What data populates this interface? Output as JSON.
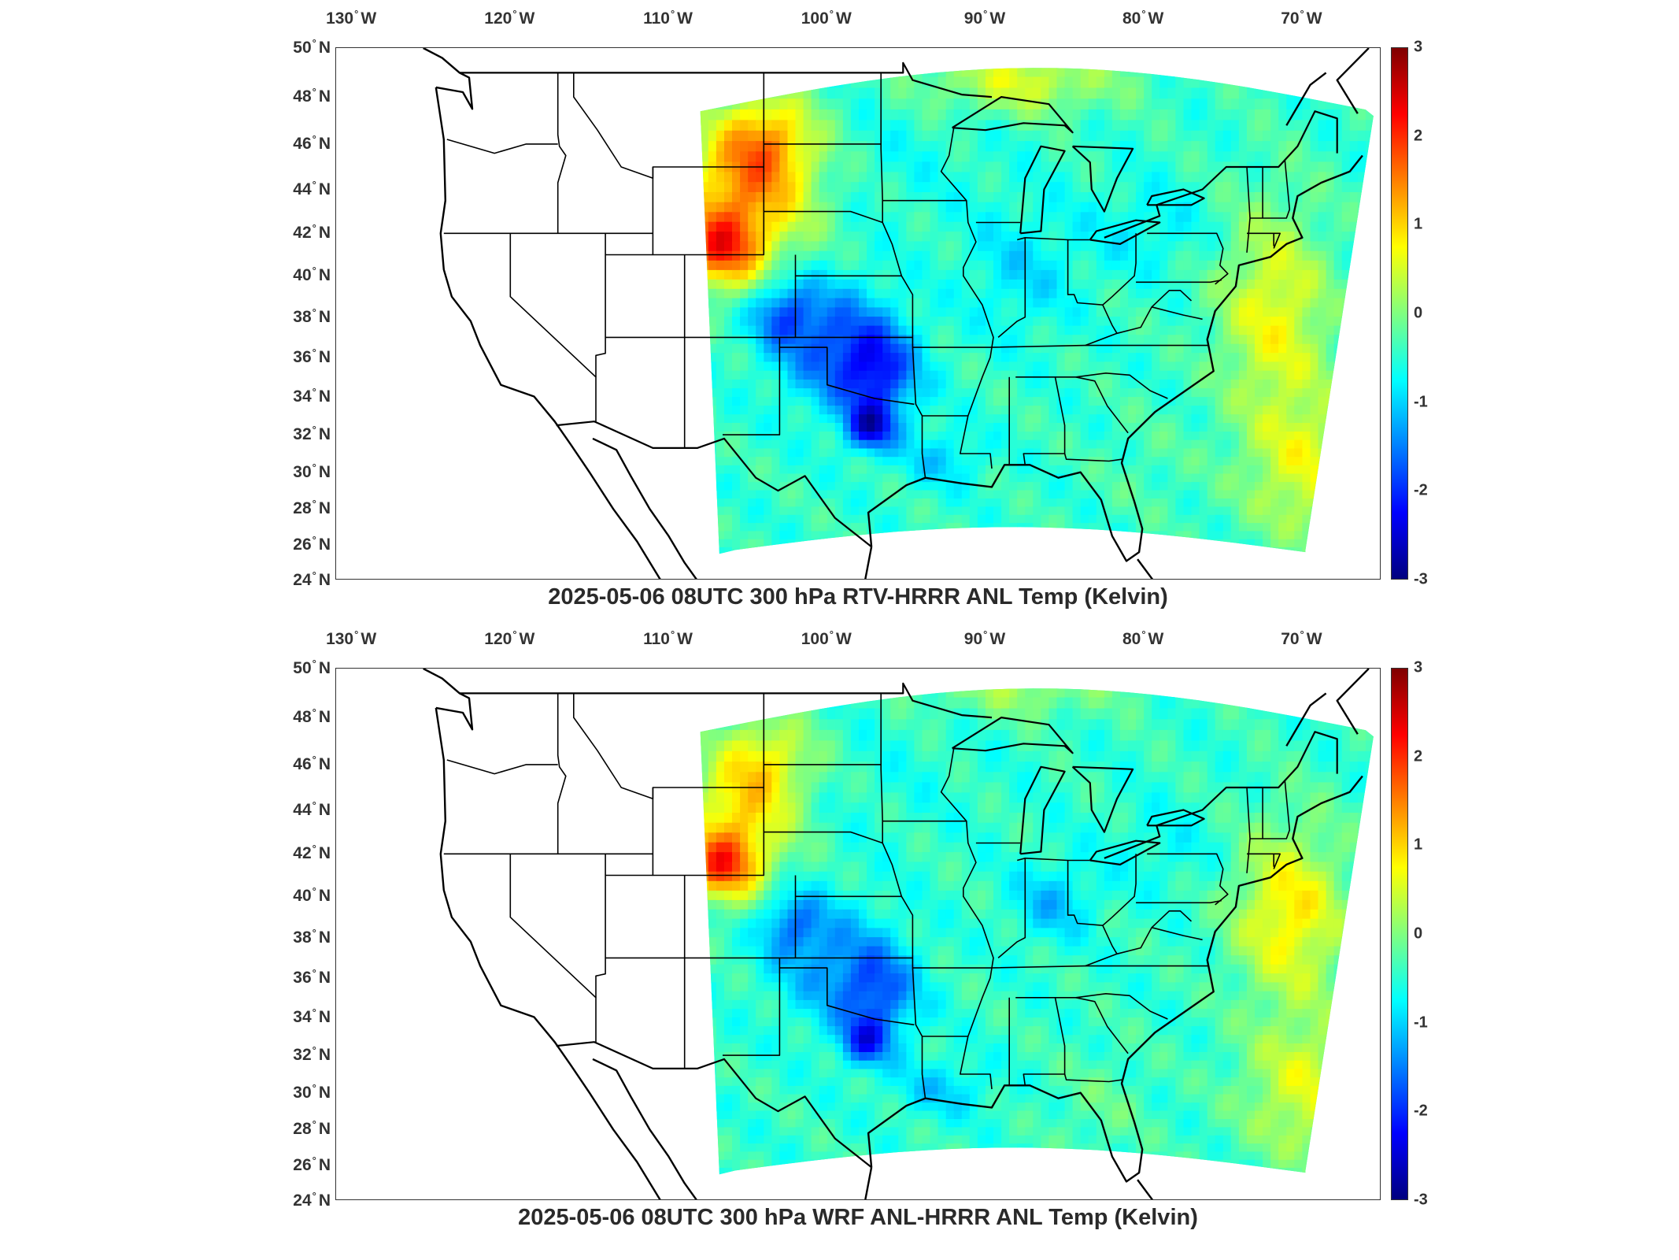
{
  "figure": {
    "panels": [
      {
        "title": "2025-05-06 08UTC 300 hPa RTV-HRRR ANL Temp (Kelvin)",
        "variant": "rtv"
      },
      {
        "title": "2025-05-06 08UTC 300 hPa WRF ANL-HRRR ANL Temp (Kelvin)",
        "variant": "wrf"
      }
    ],
    "lon_ticks": [
      {
        "value": "130",
        "hemi": "W"
      },
      {
        "value": "120",
        "hemi": "W"
      },
      {
        "value": "110",
        "hemi": "W"
      },
      {
        "value": "100",
        "hemi": "W"
      },
      {
        "value": "90",
        "hemi": "W"
      },
      {
        "value": "80",
        "hemi": "W"
      },
      {
        "value": "70",
        "hemi": "W"
      }
    ],
    "lat_ticks": [
      {
        "value": "50",
        "hemi": "N"
      },
      {
        "value": "48",
        "hemi": "N"
      },
      {
        "value": "46",
        "hemi": "N"
      },
      {
        "value": "44",
        "hemi": "N"
      },
      {
        "value": "42",
        "hemi": "N"
      },
      {
        "value": "40",
        "hemi": "N"
      },
      {
        "value": "38",
        "hemi": "N"
      },
      {
        "value": "36",
        "hemi": "N"
      },
      {
        "value": "34",
        "hemi": "N"
      },
      {
        "value": "32",
        "hemi": "N"
      },
      {
        "value": "30",
        "hemi": "N"
      },
      {
        "value": "28",
        "hemi": "N"
      },
      {
        "value": "26",
        "hemi": "N"
      },
      {
        "value": "24",
        "hemi": "N"
      }
    ],
    "colorbar": {
      "ticks": [
        "3",
        "2",
        "1",
        "0",
        "-1",
        "-2",
        "-3"
      ],
      "min": -3,
      "max": 3,
      "colormap": "jet"
    },
    "extent": {
      "lon_min": -131,
      "lon_max": -65,
      "lat_min": 24,
      "lat_max": 50
    }
  }
}
